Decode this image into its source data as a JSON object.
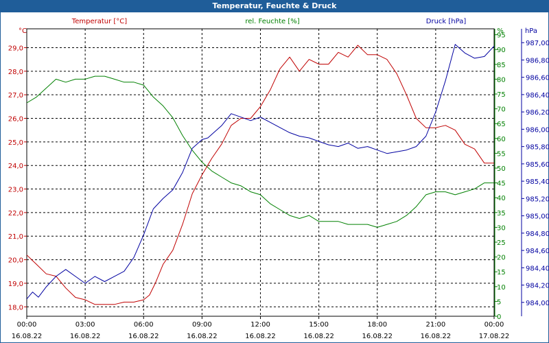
{
  "chart_data": {
    "type": "line",
    "title": "Temperatur, Feuchte & Druck",
    "x_ticks": [
      {
        "time": "00:00",
        "date": "16.08.22"
      },
      {
        "time": "03:00",
        "date": "16.08.22"
      },
      {
        "time": "06:00",
        "date": "16.08.22"
      },
      {
        "time": "09:00",
        "date": "16.08.22"
      },
      {
        "time": "12:00",
        "date": "16.08.22"
      },
      {
        "time": "15:00",
        "date": "16.08.22"
      },
      {
        "time": "18:00",
        "date": "16.08.22"
      },
      {
        "time": "21:00",
        "date": "16.08.22"
      },
      {
        "time": "00:00",
        "date": "17.08.22"
      }
    ],
    "x_unit": "hours since 16.08.22 00:00",
    "xlim": [
      0,
      24
    ],
    "axes": {
      "temperature": {
        "label": "Temperatur [°C]",
        "unit_label": "°C",
        "ylim": [
          17.6,
          29.8
        ],
        "ticks": [
          "18,0",
          "19,0",
          "20,0",
          "21,0",
          "22,0",
          "23,0",
          "24,0",
          "25,0",
          "26,0",
          "27,0",
          "28,0",
          "29,0"
        ],
        "color": "#c00000"
      },
      "humidity": {
        "label": "rel. Feuchte [%]",
        "unit_label": "%",
        "ylim": [
          0,
          97
        ],
        "ticks": [
          "0",
          "5",
          "10",
          "15",
          "20",
          "25",
          "30",
          "35",
          "40",
          "45",
          "50",
          "55",
          "60",
          "65",
          "70",
          "75",
          "80",
          "85",
          "90",
          "95"
        ],
        "color": "#008000"
      },
      "pressure": {
        "label": "Druck [hPa]",
        "unit_label": "hPa",
        "ylim": [
          983.84,
          987.16
        ],
        "ticks": [
          "984,00",
          "984,20",
          "984,40",
          "984,60",
          "984,80",
          "985,00",
          "985,20",
          "985,40",
          "985,60",
          "985,80",
          "986,00",
          "986,20",
          "986,40",
          "986,60",
          "986,80",
          "987,00"
        ],
        "color": "#0000a0"
      }
    },
    "series": [
      {
        "name": "Temperatur",
        "axis": "temperature",
        "color": "#c00000",
        "x": [
          0,
          0.5,
          1,
          1.5,
          2,
          2.5,
          3,
          3.5,
          4,
          4.5,
          5,
          5.5,
          6,
          6.3,
          6.6,
          7,
          7.5,
          8,
          8.5,
          9,
          9.5,
          10,
          10.5,
          11,
          11.5,
          12,
          12.5,
          13,
          13.5,
          14,
          14.5,
          15,
          15.5,
          16,
          16.5,
          17,
          17.5,
          18,
          18.5,
          19,
          19.5,
          20,
          20.5,
          21,
          21.5,
          22,
          22.5,
          23,
          23.5,
          24
        ],
        "values": [
          20.2,
          19.8,
          19.4,
          19.3,
          18.8,
          18.4,
          18.3,
          18.1,
          18.1,
          18.1,
          18.2,
          18.2,
          18.3,
          18.5,
          19.0,
          19.8,
          20.4,
          21.5,
          22.8,
          23.6,
          24.3,
          24.9,
          25.7,
          26.0,
          26.0,
          26.5,
          27.2,
          28.1,
          28.6,
          28.0,
          28.5,
          28.3,
          28.3,
          28.8,
          28.6,
          29.1,
          28.7,
          28.7,
          28.5,
          27.9,
          27.0,
          26.0,
          25.6,
          25.6,
          25.7,
          25.5,
          24.9,
          24.7,
          24.1,
          24.1
        ]
      },
      {
        "name": "rel. Feuchte",
        "axis": "humidity",
        "color": "#008000",
        "x": [
          0,
          0.5,
          1,
          1.5,
          2,
          2.5,
          3,
          3.5,
          4,
          4.5,
          5,
          5.5,
          6,
          6.5,
          7,
          7.5,
          8,
          8.5,
          9,
          9.5,
          10,
          10.5,
          11,
          11.5,
          12,
          12.5,
          13,
          13.5,
          14,
          14.5,
          15,
          15.5,
          16,
          16.5,
          17,
          17.5,
          18,
          18.5,
          19,
          19.5,
          20,
          20.5,
          21,
          21.5,
          22,
          22.5,
          23,
          23.5,
          24
        ],
        "values": [
          72,
          74,
          77,
          80,
          79,
          80,
          80,
          81,
          81,
          80,
          79,
          79,
          78,
          74,
          71,
          67,
          61,
          56,
          52,
          49,
          47,
          45,
          44,
          42,
          41,
          38,
          36,
          34,
          33,
          34,
          32,
          32,
          32,
          31,
          31,
          31,
          30,
          31,
          32,
          34,
          37,
          41,
          42,
          42,
          41,
          42,
          43,
          45,
          45
        ]
      },
      {
        "name": "Druck",
        "axis": "pressure",
        "color": "#0000a0",
        "x": [
          0,
          0.3,
          0.6,
          1,
          1.5,
          2,
          2.5,
          3,
          3.5,
          4,
          4.5,
          5,
          5.5,
          6,
          6.5,
          7,
          7.5,
          8,
          8.5,
          9,
          9.3,
          9.6,
          10,
          10.5,
          11,
          11.5,
          12,
          12.5,
          13,
          13.5,
          14,
          14.5,
          15,
          15.5,
          16,
          16.5,
          17,
          17.5,
          18,
          18.5,
          19,
          19.5,
          20,
          20.5,
          21,
          21.5,
          22,
          22.5,
          23,
          23.5,
          24
        ],
        "values": [
          984.04,
          984.12,
          984.06,
          984.18,
          984.3,
          984.38,
          984.3,
          984.22,
          984.3,
          984.24,
          984.3,
          984.36,
          984.52,
          984.78,
          985.08,
          985.2,
          985.3,
          985.5,
          985.78,
          985.88,
          985.9,
          985.96,
          986.04,
          986.18,
          986.14,
          986.1,
          986.14,
          986.08,
          986.02,
          985.96,
          985.92,
          985.9,
          985.86,
          985.82,
          985.8,
          985.84,
          985.78,
          985.8,
          985.76,
          985.72,
          985.74,
          985.76,
          985.8,
          985.92,
          986.2,
          986.56,
          986.98,
          986.88,
          986.82,
          986.84,
          986.96
        ]
      }
    ]
  }
}
